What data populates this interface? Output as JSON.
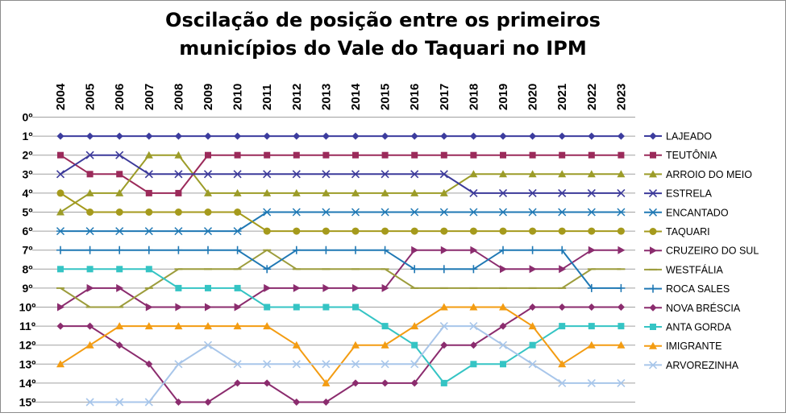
{
  "chart_data": {
    "type": "line",
    "title": [
      "Oscilação de posição entre os primeiros",
      "municípios do Vale do Taquari no IPM"
    ],
    "x": [
      "2004",
      "2005",
      "2006",
      "2007",
      "2008",
      "2009",
      "2010",
      "2011",
      "2012",
      "2013",
      "2014",
      "2015",
      "2016",
      "2017",
      "2018",
      "2019",
      "2020",
      "2021",
      "2022",
      "2023"
    ],
    "y_ticks": [
      "0º",
      "1º",
      "2º",
      "3º",
      "4º",
      "5º",
      "6º",
      "7º",
      "8º",
      "9º",
      "10º",
      "11º",
      "12º",
      "13º",
      "14º",
      "15º"
    ],
    "ylim": [
      0,
      15
    ],
    "y_inverted": true,
    "xaxis_position": "top",
    "grid": true,
    "legend": "right",
    "series": [
      {
        "name": "LAJEADO",
        "color": "#3c3c9e",
        "marker": "diamond",
        "values": [
          1,
          1,
          1,
          1,
          1,
          1,
          1,
          1,
          1,
          1,
          1,
          1,
          1,
          1,
          1,
          1,
          1,
          1,
          1,
          1
        ]
      },
      {
        "name": "TEUTÔNIA",
        "color": "#9b2a5a",
        "marker": "square",
        "values": [
          2,
          3,
          3,
          4,
          4,
          2,
          2,
          2,
          2,
          2,
          2,
          2,
          2,
          2,
          2,
          2,
          2,
          2,
          2,
          2
        ]
      },
      {
        "name": "ARROIO DO MEIO",
        "color": "#9c9c28",
        "marker": "triangle",
        "values": [
          5,
          4,
          4,
          2,
          2,
          4,
          4,
          4,
          4,
          4,
          4,
          4,
          4,
          4,
          3,
          3,
          3,
          3,
          3,
          3
        ]
      },
      {
        "name": "ESTRELA",
        "color": "#3c3a9a",
        "marker": "x",
        "values": [
          3,
          2,
          2,
          3,
          3,
          3,
          3,
          3,
          3,
          3,
          3,
          3,
          3,
          3,
          4,
          4,
          4,
          4,
          4,
          4
        ]
      },
      {
        "name": "ENCANTADO",
        "color": "#1f78b4",
        "marker": "asterisk",
        "values": [
          6,
          6,
          6,
          6,
          6,
          6,
          6,
          5,
          5,
          5,
          5,
          5,
          5,
          5,
          5,
          5,
          5,
          5,
          5,
          5
        ]
      },
      {
        "name": "TAQUARI",
        "color": "#a59a1c",
        "marker": "circle",
        "values": [
          4,
          5,
          5,
          5,
          5,
          5,
          5,
          6,
          6,
          6,
          6,
          6,
          6,
          6,
          6,
          6,
          6,
          6,
          6,
          6
        ]
      },
      {
        "name": "CRUZEIRO DO SUL",
        "color": "#8b2c6e",
        "marker": "triangle-right",
        "values": [
          10,
          9,
          9,
          10,
          10,
          10,
          10,
          9,
          9,
          9,
          9,
          9,
          7,
          7,
          7,
          8,
          8,
          8,
          7,
          7
        ]
      },
      {
        "name": "WESTFÁLIA",
        "color": "#9c9c3c",
        "marker": "dash",
        "values": [
          9,
          10,
          10,
          9,
          8,
          8,
          8,
          7,
          8,
          8,
          8,
          8,
          9,
          9,
          9,
          9,
          9,
          9,
          8,
          8
        ]
      },
      {
        "name": "ROCA SALES",
        "color": "#1f78b4",
        "marker": "plus",
        "values": [
          7,
          7,
          7,
          7,
          7,
          7,
          7,
          8,
          7,
          7,
          7,
          7,
          8,
          8,
          8,
          7,
          7,
          7,
          9,
          9
        ]
      },
      {
        "name": "NOVA BRÉSCIA",
        "color": "#8b2c6e",
        "marker": "diamond",
        "values": [
          11,
          11,
          12,
          13,
          15,
          15,
          14,
          14,
          15,
          15,
          14,
          14,
          14,
          12,
          12,
          11,
          10,
          10,
          10,
          10
        ]
      },
      {
        "name": "ANTA GORDA",
        "color": "#35c4c4",
        "marker": "square",
        "values": [
          8,
          8,
          8,
          8,
          9,
          9,
          9,
          10,
          10,
          10,
          10,
          11,
          12,
          14,
          13,
          13,
          12,
          11,
          11,
          11
        ]
      },
      {
        "name": "IMIGRANTE",
        "color": "#f39c12",
        "marker": "triangle",
        "values": [
          13,
          12,
          11,
          11,
          11,
          11,
          11,
          11,
          12,
          14,
          12,
          12,
          11,
          10,
          10,
          10,
          11,
          13,
          12,
          12
        ]
      },
      {
        "name": "ARVOREZINHA",
        "color": "#a8c6ea",
        "marker": "x",
        "values": [
          null,
          15,
          15,
          15,
          13,
          12,
          13,
          13,
          13,
          13,
          13,
          13,
          13,
          11,
          11,
          12,
          13,
          14,
          14,
          14
        ]
      }
    ]
  }
}
